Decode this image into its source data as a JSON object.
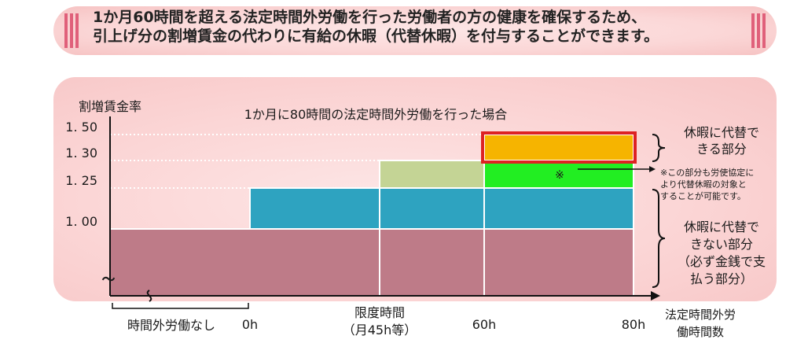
{
  "banner": {
    "line1": "1か月60時間を超える法定時間外労働を行った労働者の方の健康を確保するため、",
    "line2": "引上げ分の割増賃金の代わりに有給の休暇（代替休暇）を付与することができます。"
  },
  "chart_data": {
    "type": "bar",
    "title": "1か月に80時間の法定時間外労働を行った場合",
    "ylabel": "割増賃金率",
    "xlabel": "法定時間外労働時間数",
    "y_ticks": [
      "1. 50",
      "1. 30",
      "1. 25",
      "1. 00"
    ],
    "y_tick_values": [
      1.5,
      1.3,
      1.25,
      1.0
    ],
    "x_ticks": [
      "0h",
      "60h",
      "80h"
    ],
    "x_annotations": {
      "no_overtime": "時間外労働なし",
      "limit_line1": "限度時間",
      "limit_line2": "（月45h等）"
    },
    "axis_break_symbol": "〜",
    "marker": "※",
    "series": [
      {
        "name": "base",
        "color": "#be7b88",
        "segments": [
          {
            "x0": -30,
            "x1": 80,
            "y0": 0.9,
            "y1": 1.0
          }
        ]
      },
      {
        "name": "rate_125",
        "color": "#2ea3c0",
        "segments": [
          {
            "x0": 0,
            "x1": 80,
            "y0": 1.0,
            "y1": 1.25
          }
        ]
      },
      {
        "name": "rate_130",
        "color": "#c4d495",
        "segments": [
          {
            "x0": 45,
            "x1": 60,
            "y0": 1.25,
            "y1": 1.3
          }
        ]
      },
      {
        "name": "rate_130_substitutable",
        "color": "#22ee22",
        "segments": [
          {
            "x0": 60,
            "x1": 80,
            "y0": 1.25,
            "y1": 1.3
          }
        ]
      },
      {
        "name": "rate_150_substitutable",
        "color": "#f6b400",
        "outline": "#dd2222",
        "segments": [
          {
            "x0": 60,
            "x1": 80,
            "y0": 1.3,
            "y1": 1.5
          }
        ]
      }
    ],
    "annotations": {
      "substitutable": [
        "休暇に代替で",
        "きる部分"
      ],
      "note": [
        "※この部分も労使協定に",
        "より代替休暇の対象と",
        "することが可能です。"
      ],
      "not_substitutable": [
        "休暇に代替で",
        "きない部分",
        "（必ず金銭で支",
        "払う部分）"
      ]
    }
  },
  "colors": {
    "banner_bars": "#e0607a",
    "axis": "#111111",
    "outline_red": "#dd2222"
  }
}
